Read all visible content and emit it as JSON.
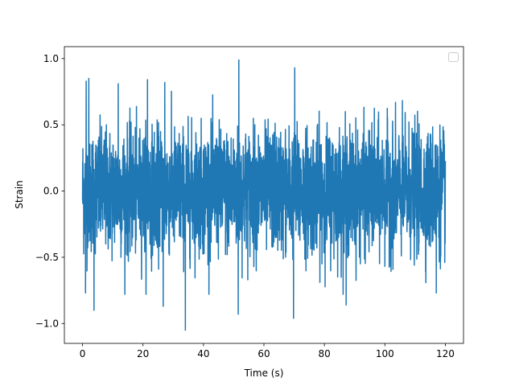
{
  "chart_data": {
    "type": "line",
    "title": "",
    "xlabel": "Time (s)",
    "ylabel": "Strain",
    "xlim": [
      -6,
      126
    ],
    "ylim": [
      -1.15,
      1.09
    ],
    "x_ticks": [
      0,
      20,
      40,
      60,
      80,
      100,
      120
    ],
    "x_tick_labels": [
      "0",
      "20",
      "40",
      "60",
      "80",
      "100",
      "120"
    ],
    "y_ticks": [
      -1.0,
      -0.5,
      0.0,
      0.5,
      1.0
    ],
    "y_tick_labels": [
      "−1.0",
      "−0.5",
      "0.0",
      "0.5",
      "1.0"
    ],
    "grid": false,
    "legend": {
      "placement": "top-right",
      "entries": []
    },
    "series": [
      {
        "color": "#1f77b4",
        "x_start": 0,
        "x_end": 120,
        "y_max": 1.0,
        "y_min": -1.05,
        "typical_envelope": [
          -0.55,
          0.55
        ],
        "peaks": [
          {
            "x": 1.2,
            "y": 0.83
          },
          {
            "x": 2.1,
            "y": 0.85
          },
          {
            "x": 11.8,
            "y": 0.81
          },
          {
            "x": 21.5,
            "y": 0.84
          },
          {
            "x": 27.2,
            "y": 0.82
          },
          {
            "x": 34.0,
            "y": 1.0
          },
          {
            "x": 51.7,
            "y": 0.99
          },
          {
            "x": 70.2,
            "y": 0.93
          },
          {
            "x": 117.0,
            "y": 0.87
          }
        ],
        "troughs": [
          {
            "x": 1.0,
            "y": -0.77
          },
          {
            "x": 3.8,
            "y": -0.9
          },
          {
            "x": 26.7,
            "y": -0.87
          },
          {
            "x": 34.0,
            "y": -1.05
          },
          {
            "x": 51.5,
            "y": -0.93
          },
          {
            "x": 69.8,
            "y": -0.96
          },
          {
            "x": 87.2,
            "y": -0.86
          },
          {
            "x": 117.0,
            "y": -0.77
          }
        ]
      }
    ]
  }
}
